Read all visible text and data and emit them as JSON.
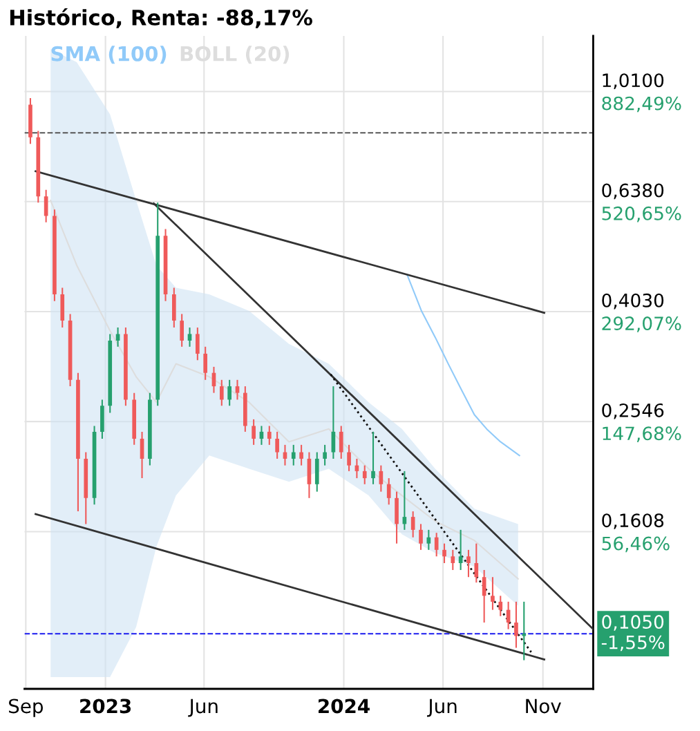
{
  "chart_data": {
    "type": "candlestick",
    "title": "Histórico, Renta: -88,17%",
    "x": [
      "2022-09-08",
      "2022-09-20",
      "2022-10-02",
      "2022-10-15",
      "2022-10-27",
      "2022-11-08",
      "2022-11-20",
      "2022-12-02",
      "2022-12-15",
      "2022-12-27",
      "2023-01-08",
      "2023-01-20",
      "2023-02-01",
      "2023-02-14",
      "2023-02-26",
      "2023-03-10",
      "2023-03-22",
      "2023-04-03",
      "2023-04-16",
      "2023-04-28",
      "2023-05-10",
      "2023-05-22",
      "2023-06-03",
      "2023-06-16",
      "2023-06-28",
      "2023-07-10",
      "2023-07-22",
      "2023-08-03",
      "2023-08-16",
      "2023-08-28",
      "2023-09-09",
      "2023-09-21",
      "2023-10-03",
      "2023-10-16",
      "2023-10-28",
      "2023-11-09",
      "2023-11-21",
      "2023-12-03",
      "2023-12-16",
      "2023-12-28",
      "2024-01-09",
      "2024-01-21",
      "2024-02-02",
      "2024-02-15",
      "2024-02-27",
      "2024-03-10",
      "2024-03-22",
      "2024-04-03",
      "2024-04-16",
      "2024-04-28",
      "2024-05-10",
      "2024-05-22",
      "2024-06-03",
      "2024-06-16",
      "2024-06-28",
      "2024-07-10",
      "2024-07-22",
      "2024-08-03",
      "2024-08-16",
      "2024-08-28",
      "2024-09-09",
      "2024-09-21",
      "2024-10-03"
    ],
    "ohlc": [
      [
        0.956,
        0.983,
        0.812,
        0.834
      ],
      [
        0.834,
        0.857,
        0.635,
        0.652
      ],
      [
        0.652,
        0.67,
        0.585,
        0.601
      ],
      [
        0.601,
        0.617,
        0.421,
        0.433
      ],
      [
        0.433,
        0.445,
        0.377,
        0.388
      ],
      [
        0.388,
        0.399,
        0.295,
        0.303
      ],
      [
        0.303,
        0.312,
        0.175,
        0.218
      ],
      [
        0.218,
        0.224,
        0.166,
        0.185
      ],
      [
        0.185,
        0.25,
        0.18,
        0.244
      ],
      [
        0.244,
        0.279,
        0.237,
        0.272
      ],
      [
        0.272,
        0.367,
        0.264,
        0.357
      ],
      [
        0.357,
        0.377,
        0.348,
        0.367
      ],
      [
        0.367,
        0.377,
        0.272,
        0.279
      ],
      [
        0.279,
        0.287,
        0.231,
        0.237
      ],
      [
        0.237,
        0.244,
        0.201,
        0.218
      ],
      [
        0.218,
        0.287,
        0.212,
        0.279
      ],
      [
        0.279,
        0.635,
        0.272,
        0.553
      ],
      [
        0.553,
        0.569,
        0.421,
        0.433
      ],
      [
        0.433,
        0.445,
        0.377,
        0.388
      ],
      [
        0.388,
        0.399,
        0.348,
        0.357
      ],
      [
        0.357,
        0.377,
        0.348,
        0.367
      ],
      [
        0.367,
        0.377,
        0.329,
        0.338
      ],
      [
        0.338,
        0.348,
        0.303,
        0.312
      ],
      [
        0.312,
        0.32,
        0.287,
        0.295
      ],
      [
        0.295,
        0.303,
        0.272,
        0.279
      ],
      [
        0.279,
        0.303,
        0.272,
        0.295
      ],
      [
        0.295,
        0.303,
        0.279,
        0.287
      ],
      [
        0.287,
        0.295,
        0.244,
        0.25
      ],
      [
        0.25,
        0.257,
        0.231,
        0.237
      ],
      [
        0.237,
        0.25,
        0.231,
        0.244
      ],
      [
        0.244,
        0.25,
        0.231,
        0.237
      ],
      [
        0.237,
        0.244,
        0.218,
        0.224
      ],
      [
        0.224,
        0.231,
        0.212,
        0.218
      ],
      [
        0.218,
        0.231,
        0.212,
        0.224
      ],
      [
        0.224,
        0.231,
        0.212,
        0.218
      ],
      [
        0.218,
        0.224,
        0.185,
        0.196
      ],
      [
        0.196,
        0.224,
        0.19,
        0.218
      ],
      [
        0.218,
        0.231,
        0.212,
        0.224
      ],
      [
        0.224,
        0.295,
        0.218,
        0.244
      ],
      [
        0.244,
        0.25,
        0.218,
        0.224
      ],
      [
        0.224,
        0.231,
        0.207,
        0.212
      ],
      [
        0.212,
        0.218,
        0.201,
        0.207
      ],
      [
        0.207,
        0.212,
        0.196,
        0.201
      ],
      [
        0.201,
        0.244,
        0.196,
        0.207
      ],
      [
        0.207,
        0.212,
        0.19,
        0.196
      ],
      [
        0.196,
        0.201,
        0.18,
        0.185
      ],
      [
        0.185,
        0.19,
        0.153,
        0.166
      ],
      [
        0.166,
        0.207,
        0.162,
        0.171
      ],
      [
        0.171,
        0.175,
        0.157,
        0.162
      ],
      [
        0.162,
        0.166,
        0.149,
        0.153
      ],
      [
        0.153,
        0.162,
        0.149,
        0.157
      ],
      [
        0.157,
        0.16,
        0.145,
        0.149
      ],
      [
        0.149,
        0.153,
        0.141,
        0.145
      ],
      [
        0.145,
        0.149,
        0.137,
        0.141
      ],
      [
        0.141,
        0.162,
        0.137,
        0.145
      ],
      [
        0.145,
        0.149,
        0.133,
        0.141
      ],
      [
        0.141,
        0.153,
        0.13,
        0.133
      ],
      [
        0.133,
        0.137,
        0.11,
        0.123
      ],
      [
        0.123,
        0.133,
        0.116,
        0.12
      ],
      [
        0.12,
        0.123,
        0.113,
        0.116
      ],
      [
        0.116,
        0.12,
        0.107,
        0.11
      ],
      [
        0.11,
        0.12,
        0.099,
        0.104
      ],
      [
        0.104,
        0.12,
        0.094,
        0.105
      ]
    ],
    "colors": [
      "#ef5a5a",
      "#ef5a5a",
      "#ef5a5a",
      "#ef5a5a",
      "#ef5a5a",
      "#ef5a5a",
      "#ef5a5a",
      "#ef5a5a",
      "#26a06e",
      "#26a06e",
      "#26a06e",
      "#26a06e",
      "#ef5a5a",
      "#ef5a5a",
      "#ef5a5a",
      "#26a06e",
      "#26a06e",
      "#ef5a5a",
      "#ef5a5a",
      "#ef5a5a",
      "#26a06e",
      "#ef5a5a",
      "#ef5a5a",
      "#ef5a5a",
      "#ef5a5a",
      "#26a06e",
      "#ef5a5a",
      "#ef5a5a",
      "#ef5a5a",
      "#26a06e",
      "#ef5a5a",
      "#ef5a5a",
      "#ef5a5a",
      "#26a06e",
      "#ef5a5a",
      "#ef5a5a",
      "#26a06e",
      "#26a06e",
      "#26a06e",
      "#ef5a5a",
      "#ef5a5a",
      "#ef5a5a",
      "#ef5a5a",
      "#26a06e",
      "#ef5a5a",
      "#ef5a5a",
      "#ef5a5a",
      "#26a06e",
      "#ef5a5a",
      "#ef5a5a",
      "#26a06e",
      "#ef5a5a",
      "#ef5a5a",
      "#ef5a5a",
      "#26a06e",
      "#ef5a5a",
      "#ef5a5a",
      "#ef5a5a",
      "#ef5a5a",
      "#ef5a5a",
      "#ef5a5a",
      "#ef5a5a",
      "#26a06e"
    ],
    "series": [
      {
        "type": "line",
        "name": "SMA (100)",
        "color": "#90caf9",
        "x": [
          "2024-04-07",
          "2024-04-19",
          "2024-04-29",
          "2024-05-20",
          "2024-06-09",
          "2024-06-29",
          "2024-07-19",
          "2024-08-08",
          "2024-08-28",
          "2024-09-26"
        ],
        "values": [
          0.47,
          0.433,
          0.404,
          0.362,
          0.324,
          0.291,
          0.262,
          0.246,
          0.234,
          0.221
        ]
      },
      {
        "type": "line",
        "name": "BOLL (20)",
        "color": "#dddddd",
        "x": [
          "2022-10-09",
          "2022-11-18",
          "2023-01-08",
          "2023-02-17",
          "2023-03-20",
          "2023-04-19",
          "2023-06-09",
          "2023-08-09",
          "2023-10-09",
          "2023-12-09",
          "2024-02-08",
          "2024-03-30",
          "2024-05-20",
          "2024-07-19",
          "2024-09-24"
        ],
        "values": [
          0.641,
          0.489,
          0.372,
          0.307,
          0.276,
          0.324,
          0.307,
          0.276,
          0.234,
          0.247,
          0.209,
          0.187,
          0.168,
          0.155,
          0.132
        ],
        "upper": [
          1.206,
          1.142,
          0.918,
          0.641,
          0.489,
          0.445,
          0.433,
          0.404,
          0.352,
          0.324,
          0.276,
          0.247,
          0.209,
          0.177,
          0.166
        ],
        "lower": [
          0.0876,
          0.0876,
          0.0876,
          0.108,
          0.151,
          0.187,
          0.221,
          0.209,
          0.198,
          0.209,
          0.187,
          0.159,
          0.147,
          0.139,
          0.118
        ]
      },
      {
        "type": "line",
        "color": "#333333",
        "line_style": "solid",
        "x": [
          "2022-09-16",
          "2024-11-03"
        ],
        "values": [
          0.724,
          0.401
        ]
      },
      {
        "type": "line",
        "color": "#333333",
        "line_style": "solid",
        "x": [
          "2022-09-16",
          "2024-11-03"
        ],
        "values": [
          0.173,
          0.0943
        ]
      },
      {
        "type": "line",
        "color": "#333333",
        "line_style": "solid",
        "x": [
          "2023-03-16",
          "2025-01-17"
        ],
        "values": [
          0.633,
          0.107
        ]
      },
      {
        "type": "line",
        "color": "#111111",
        "line_style": "dotted",
        "x": [
          "2023-12-12",
          "2024-10-14"
        ],
        "values": [
          0.31,
          0.0972
        ]
      }
    ],
    "ref_lines": [
      {
        "axis": "y",
        "value": 0.85,
        "color": "#555555",
        "line_style": "dashed"
      },
      {
        "axis": "y",
        "value": 0.105,
        "label": "0,1050\n-1,55%",
        "color": "#1a1aee",
        "line_style": "dashed"
      }
    ],
    "log": true,
    "ylim": [
      0.0834,
      1.274
    ],
    "yticks": [
      {
        "value": 1.01,
        "label": "1,0100"
      },
      {
        "value": 0.638,
        "label": "0,6380"
      },
      {
        "value": 0.403,
        "label": "0,4030"
      },
      {
        "value": 0.2546,
        "label": "0,2546"
      },
      {
        "value": 0.1608,
        "label": "0,1608"
      }
    ],
    "annotations": [
      "882,49%",
      "520,65%",
      "292,07%",
      "147,68%",
      "56,46%"
    ],
    "xlim": [
      "2022-08-30",
      "2025-01-17"
    ],
    "xticks": [
      {
        "value": "2022-09-01",
        "label": "Sep"
      },
      {
        "value": "2023-01-01",
        "label": "2023"
      },
      {
        "value": "2023-06-01",
        "label": "Jun"
      },
      {
        "value": "2024-01-01",
        "label": "2024"
      },
      {
        "value": "2024-06-01",
        "label": "Jun"
      },
      {
        "value": "2024-11-01",
        "label": "Nov"
      }
    ],
    "grid": true
  }
}
